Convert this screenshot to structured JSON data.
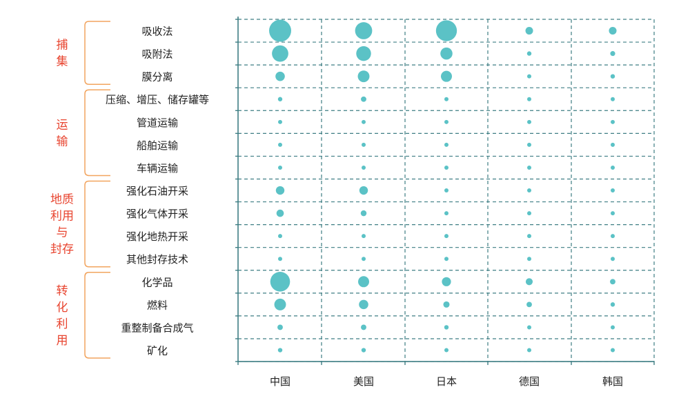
{
  "chart_data": {
    "type": "scatter",
    "subtype": "bubble-matrix",
    "x_categories": [
      "中国",
      "美国",
      "日本",
      "德国",
      "韩国"
    ],
    "y_groups": [
      {
        "name": "捕集",
        "name_lines": [
          "捕",
          "集"
        ],
        "items": [
          "吸收法",
          "吸附法",
          "膜分离"
        ]
      },
      {
        "name": "运输",
        "name_lines": [
          "运",
          "输"
        ],
        "items": [
          "压缩、增压、储存罐等",
          "管道运输",
          "船舶运输",
          "车辆运输"
        ]
      },
      {
        "name": "地质利用与封存",
        "name_lines": [
          "地质",
          "利用",
          "与",
          "封存"
        ],
        "items": [
          "强化石油开采",
          "强化气体开采",
          "强化地热开采",
          "其他封存技术"
        ]
      },
      {
        "name": "转化利用",
        "name_lines": [
          "转",
          "化",
          "利",
          "用"
        ],
        "items": [
          "化学品",
          "燃料",
          "重整制备合成气",
          "矿化"
        ]
      }
    ],
    "values": [
      [
        100,
        60,
        90,
        12,
        12
      ],
      [
        55,
        45,
        30,
        4,
        5
      ],
      [
        18,
        28,
        25,
        3,
        4
      ],
      [
        4,
        6,
        3,
        2,
        2
      ],
      [
        3,
        3,
        2,
        2,
        2
      ],
      [
        3,
        3,
        2,
        2,
        2
      ],
      [
        3,
        3,
        2,
        2,
        2
      ],
      [
        15,
        15,
        3,
        3,
        3
      ],
      [
        11,
        7,
        3,
        2,
        2
      ],
      [
        3,
        3,
        2,
        2,
        2
      ],
      [
        3,
        3,
        2,
        2,
        2
      ],
      [
        80,
        25,
        17,
        10,
        6
      ],
      [
        28,
        18,
        8,
        6,
        4
      ],
      [
        6,
        6,
        4,
        3,
        3
      ],
      [
        4,
        4,
        3,
        2,
        2
      ]
    ],
    "bubble_color": "#5bc2c6",
    "grid": true,
    "grid_style": "dashed",
    "grid_color": "#3d7d83",
    "group_label_color": "#e8442f",
    "bracket_color": "#f2a45e"
  }
}
